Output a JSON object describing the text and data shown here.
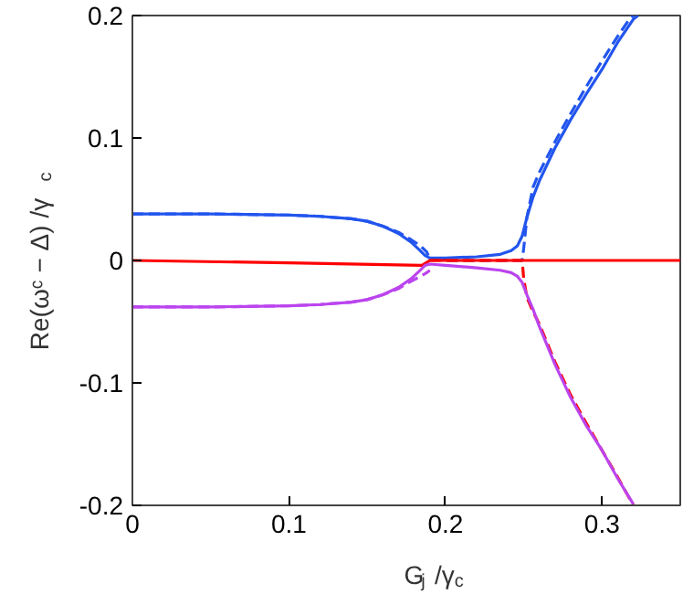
{
  "chart_data": {
    "type": "line",
    "xlabel": "G$_{j}$ /γ$_{c}$",
    "ylabel": "Re(ωᶜ − Δ) /γ$_{c}$",
    "xlim": [
      0,
      0.35
    ],
    "ylim": [
      -0.2,
      0.2
    ],
    "xticks": [
      0,
      0.1,
      0.2,
      0.3
    ],
    "yticks": [
      -0.2,
      -0.1,
      0,
      0.1,
      0.2
    ],
    "grid": false,
    "series": [
      {
        "color": "#2255ee",
        "line_style": "solid",
        "x": [
          0,
          0.05,
          0.1,
          0.12,
          0.14,
          0.15,
          0.16,
          0.17,
          0.178,
          0.183,
          0.187,
          0.19,
          0.2,
          0.22,
          0.235,
          0.242,
          0.246,
          0.249,
          0.252,
          0.256,
          0.26,
          0.27,
          0.28,
          0.29,
          0.3,
          0.31,
          0.32,
          0.323
        ],
        "values": [
          0.038,
          0.038,
          0.037,
          0.036,
          0.034,
          0.032,
          0.028,
          0.022,
          0.015,
          0.009,
          0.004,
          0.002,
          0.002,
          0.003,
          0.005,
          0.008,
          0.012,
          0.02,
          0.035,
          0.052,
          0.065,
          0.092,
          0.115,
          0.136,
          0.156,
          0.178,
          0.197,
          0.2
        ]
      },
      {
        "color": "#2255ee",
        "line_style": "dashed",
        "x": [
          0,
          0.05,
          0.1,
          0.12,
          0.14,
          0.15,
          0.16,
          0.17,
          0.178,
          0.184,
          0.188,
          0.19,
          0.2,
          0.22,
          0.24,
          0.249,
          0.25,
          0.252,
          0.256,
          0.26,
          0.27,
          0.28,
          0.29,
          0.3,
          0.31,
          0.318,
          0.32
        ],
        "values": [
          0.038,
          0.038,
          0.037,
          0.036,
          0.034,
          0.032,
          0.028,
          0.023,
          0.017,
          0.012,
          0.007,
          0.001,
          0,
          0,
          0,
          0,
          0.01,
          0.035,
          0.06,
          0.072,
          0.097,
          0.12,
          0.142,
          0.163,
          0.183,
          0.198,
          0.2
        ]
      },
      {
        "color": "#ff0000",
        "line_style": "solid",
        "x": [
          0,
          0.1,
          0.185,
          0.19,
          0.25,
          0.35
        ],
        "values": [
          0,
          -0.002,
          -0.004,
          0,
          0,
          0
        ]
      },
      {
        "color": "#ff0000",
        "line_style": "dashed",
        "x": [
          0.19,
          0.22,
          0.249,
          0.25,
          0.252,
          0.256,
          0.26,
          0.27,
          0.28,
          0.29,
          0.3,
          0.31,
          0.32
        ],
        "values": [
          0,
          0,
          0,
          -0.015,
          -0.03,
          -0.042,
          -0.052,
          -0.083,
          -0.11,
          -0.133,
          -0.155,
          -0.177,
          -0.2
        ]
      },
      {
        "color": "#bb44ee",
        "line_style": "solid",
        "x": [
          0,
          0.05,
          0.1,
          0.12,
          0.14,
          0.15,
          0.16,
          0.17,
          0.178,
          0.183,
          0.187,
          0.19,
          0.2,
          0.22,
          0.235,
          0.242,
          0.246,
          0.249,
          0.252,
          0.256,
          0.26,
          0.27,
          0.28,
          0.29,
          0.3,
          0.31,
          0.32
        ],
        "values": [
          -0.038,
          -0.038,
          -0.037,
          -0.036,
          -0.034,
          -0.032,
          -0.028,
          -0.022,
          -0.015,
          -0.009,
          -0.004,
          -0.003,
          -0.004,
          -0.006,
          -0.008,
          -0.01,
          -0.013,
          -0.018,
          -0.028,
          -0.04,
          -0.054,
          -0.085,
          -0.112,
          -0.135,
          -0.155,
          -0.178,
          -0.199
        ]
      },
      {
        "color": "#bb44ee",
        "line_style": "dashed",
        "x": [
          0,
          0.05,
          0.1,
          0.12,
          0.14,
          0.15,
          0.16,
          0.17,
          0.178,
          0.184,
          0.188,
          0.19
        ],
        "values": [
          -0.038,
          -0.038,
          -0.037,
          -0.036,
          -0.034,
          -0.032,
          -0.028,
          -0.023,
          -0.017,
          -0.013,
          -0.01,
          -0.008
        ]
      }
    ]
  }
}
